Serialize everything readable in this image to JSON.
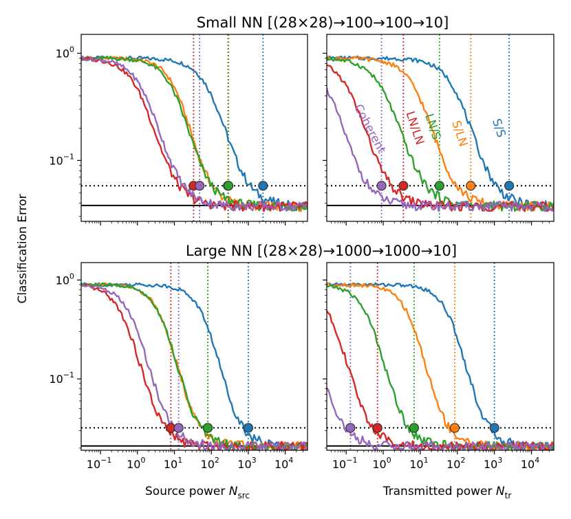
{
  "figure": {
    "ylabel": "Classification Error",
    "top_title": "Small NN [(28×28)→100→100→10]",
    "bottom_title": "Large NN [(28×28)→1000→1000→10]",
    "xlabel_left": {
      "prefix": "Source power ",
      "var": "N",
      "sub": "src"
    },
    "xlabel_right": {
      "prefix": "Transmitted power ",
      "var": "N",
      "sub": "tr"
    }
  },
  "colors": {
    "S/S": "#1f77b4",
    "S/LN": "#ff7f0e",
    "LN/S": "#2ca02c",
    "LN/LN": "#d62728",
    "Coherent": "#9467bd"
  },
  "chart_data": [
    {
      "id": "small-source",
      "type": "line",
      "xscale": "log",
      "yscale": "log",
      "xlim": [
        0.03,
        40000
      ],
      "ylim": [
        0.027,
        1.5
      ],
      "xticks": [
        "10^-1",
        "10^0",
        "10^1",
        "10^2",
        "10^3",
        "10^4"
      ],
      "yticks": [
        "10^-1",
        "10^0"
      ],
      "show_xticklabels": false,
      "show_yticklabels": true,
      "target_error": 0.058,
      "floor_error": 0.038,
      "series": [
        {
          "key": "S/S",
          "mid": 250,
          "width": 0.36,
          "cross": 2500
        },
        {
          "key": "S/LN",
          "mid": 28,
          "width": 0.32,
          "cross": 280
        },
        {
          "key": "LN/S",
          "mid": 25,
          "width": 0.34,
          "cross": 290
        },
        {
          "key": "LN/LN",
          "mid": 3.0,
          "width": 0.36,
          "cross": 33
        },
        {
          "key": "Coherent",
          "mid": 4.0,
          "width": 0.36,
          "cross": 48
        }
      ]
    },
    {
      "id": "small-transmitted",
      "type": "line",
      "xscale": "log",
      "yscale": "log",
      "xlim": [
        0.03,
        40000
      ],
      "ylim": [
        0.027,
        1.5
      ],
      "xticks": [
        "10^-1",
        "10^0",
        "10^1",
        "10^2",
        "10^3",
        "10^4"
      ],
      "yticks": [
        "10^-1",
        "10^0"
      ],
      "show_xticklabels": false,
      "show_yticklabels": false,
      "target_error": 0.058,
      "floor_error": 0.038,
      "series_labels": [
        {
          "key": "Coherent",
          "text": "Coherent"
        },
        {
          "key": "LN/LN",
          "text": "LN/LN"
        },
        {
          "key": "LN/S",
          "text": "LN/S"
        },
        {
          "key": "S/LN",
          "text": "S/LN"
        },
        {
          "key": "S/S",
          "text": "S/S"
        }
      ],
      "series": [
        {
          "key": "S/S",
          "mid": 250,
          "width": 0.36,
          "cross": 2500
        },
        {
          "key": "S/LN",
          "mid": 22,
          "width": 0.36,
          "cross": 230
        },
        {
          "key": "LN/S",
          "mid": 3.0,
          "width": 0.38,
          "cross": 33
        },
        {
          "key": "LN/LN",
          "mid": 0.35,
          "width": 0.37,
          "cross": 3.5
        },
        {
          "key": "Coherent",
          "mid": 0.09,
          "width": 0.36,
          "cross": 0.9
        }
      ]
    },
    {
      "id": "large-source",
      "type": "line",
      "xscale": "log",
      "yscale": "log",
      "xlim": [
        0.03,
        40000
      ],
      "ylim": [
        0.019,
        1.5
      ],
      "xticks": [
        "10^-1",
        "10^0",
        "10^1",
        "10^2",
        "10^3",
        "10^4"
      ],
      "yticks": [
        "10^-1",
        "10^0"
      ],
      "show_xticklabels": true,
      "show_yticklabels": true,
      "target_error": 0.032,
      "floor_error": 0.021,
      "series": [
        {
          "key": "S/S",
          "mid": 170,
          "width": 0.32,
          "cross": 1000
        },
        {
          "key": "S/LN",
          "mid": 12,
          "width": 0.32,
          "cross": 80
        },
        {
          "key": "LN/S",
          "mid": 12,
          "width": 0.32,
          "cross": 80
        },
        {
          "key": "LN/LN",
          "mid": 1.2,
          "width": 0.34,
          "cross": 8
        },
        {
          "key": "Coherent",
          "mid": 2.0,
          "width": 0.34,
          "cross": 13
        }
      ]
    },
    {
      "id": "large-transmitted",
      "type": "line",
      "xscale": "log",
      "yscale": "log",
      "xlim": [
        0.03,
        40000
      ],
      "ylim": [
        0.019,
        1.5
      ],
      "xticks": [
        "10^-1",
        "10^0",
        "10^1",
        "10^2",
        "10^3",
        "10^4"
      ],
      "yticks": [
        "10^-1",
        "10^0"
      ],
      "show_xticklabels": true,
      "show_yticklabels": false,
      "target_error": 0.032,
      "floor_error": 0.021,
      "series": [
        {
          "key": "S/S",
          "mid": 170,
          "width": 0.32,
          "cross": 1000
        },
        {
          "key": "S/LN",
          "mid": 14,
          "width": 0.32,
          "cross": 85
        },
        {
          "key": "LN/S",
          "mid": 1.1,
          "width": 0.33,
          "cross": 6.8
        },
        {
          "key": "LN/LN",
          "mid": 0.11,
          "width": 0.34,
          "cross": 0.7
        },
        {
          "key": "Coherent",
          "mid": 0.02,
          "width": 0.34,
          "cross": 0.13
        }
      ]
    }
  ]
}
